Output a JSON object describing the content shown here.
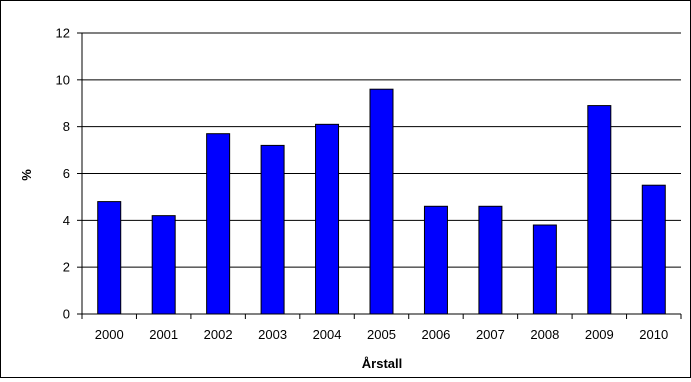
{
  "chart_data": {
    "type": "bar",
    "categories": [
      "2000",
      "2001",
      "2002",
      "2003",
      "2004",
      "2005",
      "2006",
      "2007",
      "2008",
      "2009",
      "2010"
    ],
    "values": [
      4.8,
      4.2,
      7.7,
      7.2,
      8.1,
      9.6,
      4.6,
      4.6,
      3.8,
      8.9,
      5.5
    ],
    "xlabel": "Årstall",
    "ylabel": "%",
    "ylim": [
      0,
      12
    ],
    "yticks": [
      "0",
      "2",
      "4",
      "6",
      "8",
      "10",
      "12"
    ],
    "grid": true,
    "legend": "none",
    "colors": {
      "bar": "#0000ff",
      "bar_stroke": "#000000",
      "grid": "#000000",
      "axis": "#000000"
    }
  }
}
